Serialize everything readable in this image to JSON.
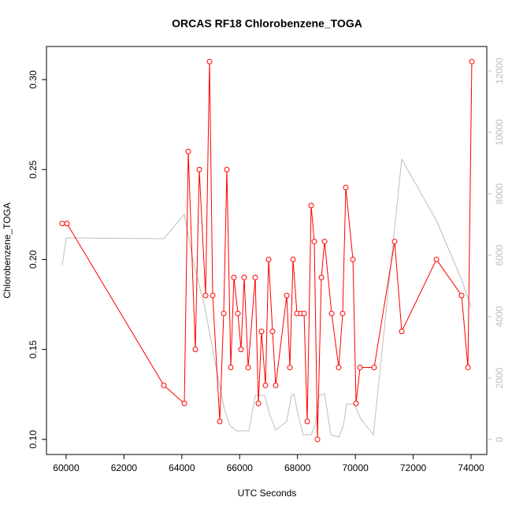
{
  "chart_data": {
    "type": "line",
    "title": "ORCAS RF18 Chlorobenzene_TOGA",
    "x_label": "UTC Seconds",
    "y_label": "Chlorobenzene_TOGA",
    "xlim": [
      59320,
      74545
    ],
    "ylim": [
      0.0916,
      0.3184
    ],
    "y2lim": [
      -487,
      12795
    ],
    "xticks": [
      60000,
      62000,
      64000,
      66000,
      68000,
      70000,
      72000,
      74000
    ],
    "yticks": [
      {
        "value": 0.1,
        "label": "0.10"
      },
      0.15,
      {
        "value": 0.2,
        "label": "0.20"
      },
      0.25,
      {
        "value": 0.3,
        "label": "0.30"
      }
    ],
    "y2ticks": [
      0,
      2000,
      4000,
      6000,
      8000,
      10000,
      12000
    ],
    "series": [
      {
        "color": "#bebebe",
        "axis": "y2",
        "x": [
          59864,
          60000,
          63378,
          64086,
          64386,
          64794,
          65203,
          65475,
          65666,
          65884,
          66320,
          66538,
          66865,
          67028,
          67246,
          67627,
          67791,
          67872,
          68009,
          68199,
          68472,
          68608,
          68744,
          68935,
          69153,
          69425,
          69589,
          69698,
          69970,
          70188,
          70624,
          71604,
          72803,
          73674,
          74000
        ],
        "values": [
          5667,
          6564,
          6538,
          7333,
          5846,
          4308,
          2256,
          974,
          462,
          282,
          282,
          1436,
          1436,
          846,
          308,
          590,
          1436,
          1487,
          846,
          154,
          154,
          462,
          1436,
          1487,
          154,
          77,
          462,
          1154,
          1154,
          667,
          154,
          9128,
          7128,
          5205,
          4308
        ]
      },
      {
        "color": "#ff0000",
        "markers": true,
        "x": [
          59864,
          60027,
          63378,
          64086,
          64222,
          64467,
          64604,
          64822,
          64958,
          65067,
          65312,
          65448,
          65557,
          65693,
          65802,
          65938,
          66047,
          66156,
          66293,
          66538,
          66647,
          66756,
          66892,
          67001,
          67137,
          67246,
          67628,
          67736,
          67845,
          67981,
          68118,
          68227,
          68336,
          68472,
          68581,
          68690,
          68826,
          68935,
          69180,
          69425,
          69561,
          69670,
          69916,
          70025,
          70161,
          70651,
          71359,
          71604,
          72803,
          73674,
          73893,
          74027
        ],
        "values": [
          0.22,
          0.22,
          0.13,
          0.12,
          0.26,
          0.15,
          0.25,
          0.18,
          0.31,
          0.18,
          0.11,
          0.17,
          0.25,
          0.14,
          0.19,
          0.17,
          0.15,
          0.19,
          0.14,
          0.19,
          0.12,
          0.16,
          0.13,
          0.2,
          0.16,
          0.13,
          0.18,
          0.14,
          0.2,
          0.17,
          0.17,
          0.17,
          0.11,
          0.23,
          0.21,
          0.1,
          0.19,
          0.21,
          0.17,
          0.14,
          0.17,
          0.24,
          0.2,
          0.12,
          0.14,
          0.14,
          0.21,
          0.16,
          0.2,
          0.18,
          0.14,
          0.31
        ]
      }
    ]
  }
}
